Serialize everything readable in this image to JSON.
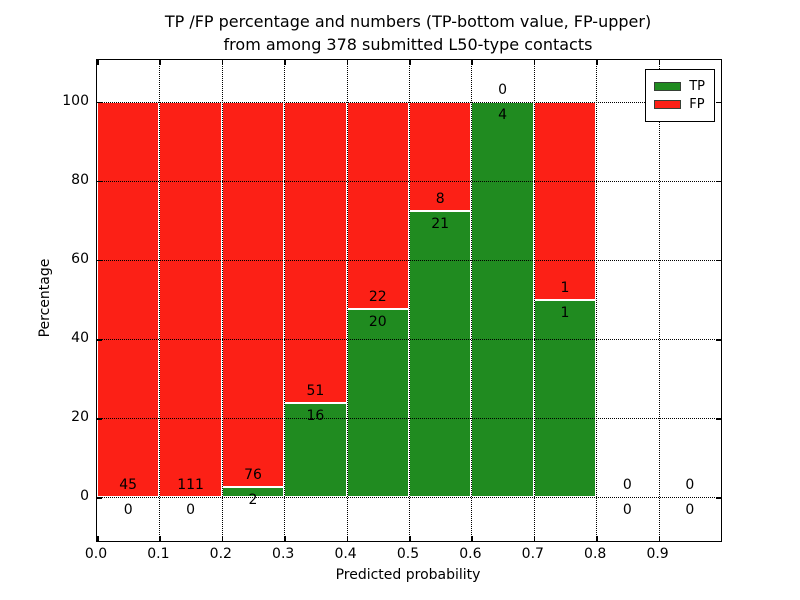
{
  "title": {
    "line1": "TP /FP percentage and numbers (TP-bottom value, FP-upper)",
    "line2": "from among 378 submitted L50-type contacts"
  },
  "axes": {
    "xlabel": "Predicted probability",
    "ylabel": "Percentage"
  },
  "chart_data": {
    "type": "bar",
    "stacked": true,
    "normalized_to": 100,
    "title": "TP /FP percentage and numbers (TP-bottom value, FP-upper) from among 378 submitted L50-type contacts",
    "total_submitted_contacts": 378,
    "xlabel": "Predicted probability",
    "ylabel": "Percentage",
    "xlim": [
      0.0,
      1.0
    ],
    "ylim": [
      -11,
      110.5
    ],
    "x_ticks": [
      "0.0",
      "0.1",
      "0.2",
      "0.3",
      "0.4",
      "0.5",
      "0.6",
      "0.7",
      "0.8",
      "0.9"
    ],
    "y_ticks": [
      0,
      20,
      40,
      60,
      80,
      100
    ],
    "grid": "dotted",
    "bin_edges": [
      0.0,
      0.1,
      0.2,
      0.3,
      0.4,
      0.5,
      0.6,
      0.7,
      0.8,
      0.9,
      1.0
    ],
    "categories": [
      "0.0-0.1",
      "0.1-0.2",
      "0.2-0.3",
      "0.3-0.4",
      "0.4-0.5",
      "0.5-0.6",
      "0.6-0.7",
      "0.7-0.8",
      "0.8-0.9",
      "0.9-1.0"
    ],
    "series": [
      {
        "name": "TP",
        "color": "#208b20",
        "counts": [
          0,
          0,
          2,
          16,
          20,
          21,
          4,
          1,
          0,
          0
        ]
      },
      {
        "name": "FP",
        "color": "#fc2016",
        "counts": [
          45,
          111,
          76,
          51,
          22,
          8,
          0,
          1,
          0,
          0
        ]
      }
    ],
    "tp_percent": [
      0.0,
      0.0,
      2.6,
      23.9,
      47.6,
      72.4,
      100.0,
      50.0,
      null,
      null
    ],
    "annotation_rule": "FP count printed above TP/FP boundary, TP count printed below it",
    "legend": {
      "position": "upper right",
      "entries": [
        {
          "label": "TP",
          "color": "#208b20"
        },
        {
          "label": "FP",
          "color": "#fc2016"
        }
      ]
    }
  }
}
